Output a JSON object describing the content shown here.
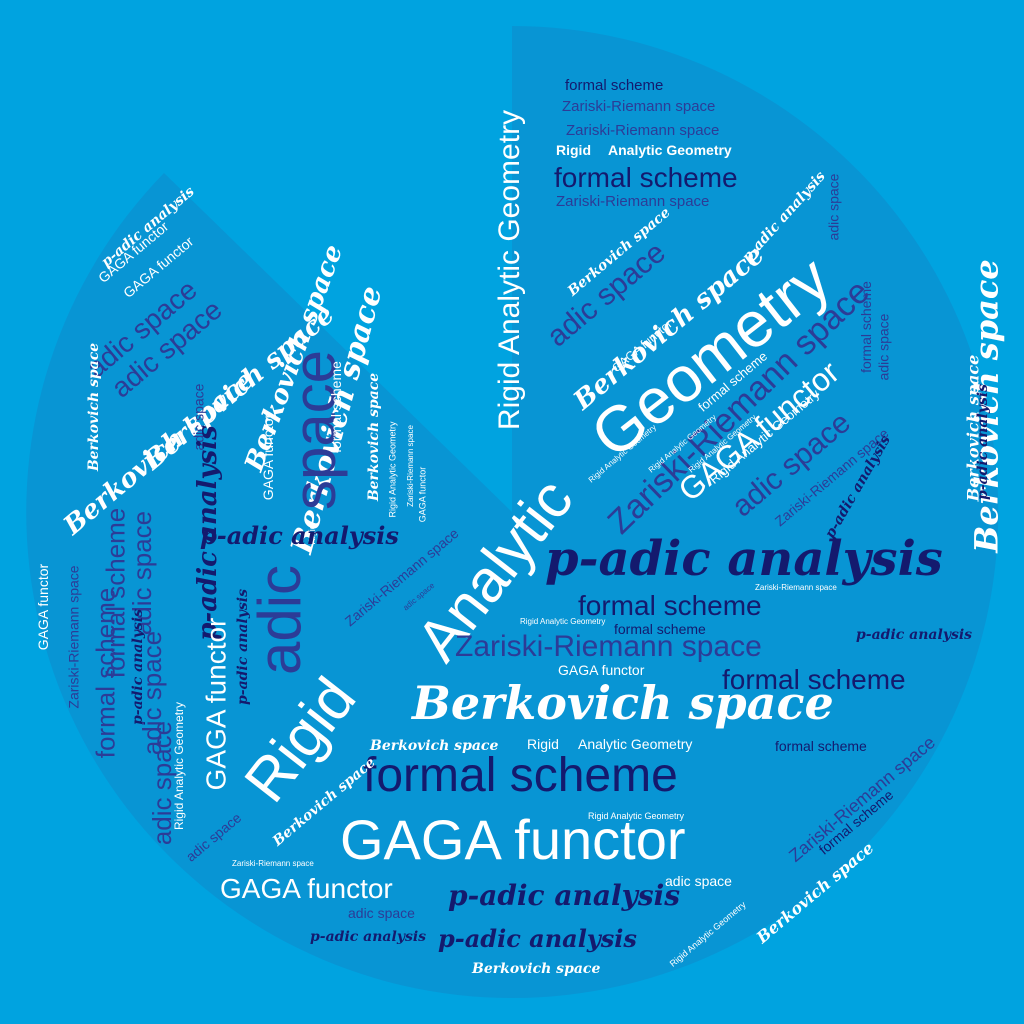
{
  "colors": {
    "background": "#00a3e0",
    "disc": "#0895d4",
    "white": "#ffffff",
    "navy": "#141a6e",
    "blue": "#2c3c97"
  },
  "words": {
    "rigid_analytic_geometry": "Rigid Analytic Geometry",
    "rigid": "Rigid",
    "analytic": "Analytic",
    "geometry": "Geometry",
    "analytic_geometry": "Analytic Geometry",
    "formal_scheme": "formal scheme",
    "zariski_riemann_space": "Zariski-Riemann space",
    "berkovich_space": "Berkovich space",
    "adic_space": "adic space",
    "adic": "adic",
    "space": "space",
    "gaga_functor": "GAGA functor",
    "p_adic_analysis": "p-adic analysis"
  }
}
